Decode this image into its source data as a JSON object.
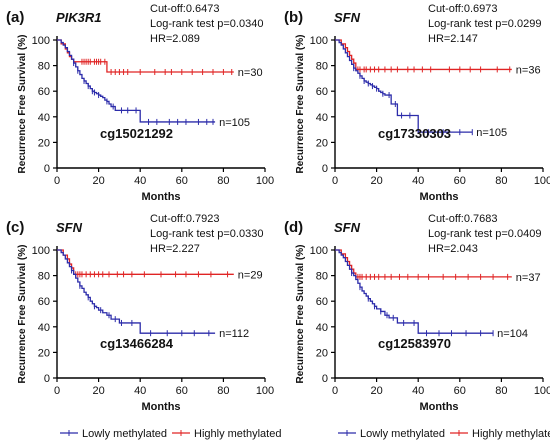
{
  "colors": {
    "low": "#2c2caa",
    "high": "#e02424",
    "axis": "#000000"
  },
  "chart_data": [
    {
      "type": "line",
      "panel": "(a)",
      "gene": "PIK3R1",
      "probe": "cg15021292",
      "stats": [
        "Cut-off:0.6473",
        "Log-rank test p=0.0340",
        "HR=2.089"
      ],
      "xlabel": "Months",
      "ylabel": "Recurrence Free Survival (%)",
      "xlim": [
        0,
        100
      ],
      "ylim": [
        0,
        100
      ],
      "xticks": [
        0,
        20,
        40,
        60,
        80,
        100
      ],
      "yticks": [
        0,
        20,
        40,
        60,
        80,
        100
      ],
      "series": [
        {
          "name": "Highly methylated",
          "color_key": "high",
          "n_label": "n=30",
          "x": [
            0,
            2,
            4,
            5,
            6,
            7,
            8,
            9,
            11,
            24,
            85
          ],
          "y": [
            100,
            97,
            93,
            90,
            87,
            85,
            83,
            83,
            83,
            75,
            75
          ],
          "censor_x": [
            12,
            13,
            14,
            15,
            16,
            18,
            19,
            20,
            21,
            23,
            26,
            28,
            30,
            32,
            34,
            40,
            47,
            52,
            55,
            60,
            65,
            70,
            75,
            80,
            84
          ]
        },
        {
          "name": "Lowly methylated",
          "color_key": "low",
          "n_label": "n=105",
          "x": [
            0,
            2,
            3,
            4,
            5,
            6,
            7,
            8,
            9,
            10,
            11,
            12,
            13,
            14,
            15,
            16,
            17,
            18,
            19,
            20,
            21,
            22,
            23,
            24,
            25,
            26,
            28,
            30,
            40,
            76
          ],
          "y": [
            100,
            98,
            96,
            94,
            91,
            88,
            85,
            82,
            79,
            76,
            73,
            70,
            68,
            66,
            64,
            62,
            60,
            59,
            58,
            57,
            56,
            55,
            53,
            52,
            50,
            48,
            45,
            45,
            36,
            36
          ],
          "censor_x": [
            8,
            10,
            13,
            15,
            17,
            18,
            20,
            24,
            27,
            31,
            34,
            38,
            44,
            48,
            54,
            58,
            62,
            68,
            72,
            75
          ]
        }
      ]
    },
    {
      "type": "line",
      "panel": "(b)",
      "gene": "SFN",
      "probe": "cg17330303",
      "stats": [
        "Cut-off:0.6973",
        "Log-rank test p=0.0299",
        "HR=2.147"
      ],
      "xlabel": "Months",
      "ylabel": "Recurrence Free Survival (%)",
      "xlim": [
        0,
        100
      ],
      "ylim": [
        0,
        100
      ],
      "xticks": [
        0,
        20,
        40,
        60,
        80,
        100
      ],
      "yticks": [
        0,
        20,
        40,
        60,
        80,
        100
      ],
      "series": [
        {
          "name": "Highly methylated",
          "color_key": "high",
          "n_label": "n=36",
          "x": [
            0,
            3,
            5,
            6,
            7,
            8,
            9,
            10,
            85
          ],
          "y": [
            100,
            97,
            94,
            91,
            88,
            85,
            82,
            77,
            77
          ],
          "censor_x": [
            11,
            12,
            14,
            15,
            17,
            19,
            21,
            24,
            27,
            30,
            35,
            38,
            42,
            46,
            55,
            60,
            65,
            70,
            78,
            84
          ]
        },
        {
          "name": "Lowly methylated",
          "color_key": "low",
          "n_label": "n=105",
          "x": [
            0,
            2,
            3,
            4,
            5,
            6,
            7,
            8,
            9,
            10,
            11,
            12,
            13,
            14,
            15,
            16,
            17,
            18,
            19,
            20,
            21,
            22,
            23,
            24,
            27,
            30,
            40,
            66
          ],
          "y": [
            100,
            98,
            96,
            93,
            90,
            87,
            84,
            81,
            78,
            76,
            74,
            72,
            70,
            68,
            67,
            66,
            65,
            64,
            63,
            62,
            60,
            59,
            58,
            57,
            50,
            41,
            28,
            28
          ],
          "censor_x": [
            9,
            12,
            14,
            16,
            18,
            20,
            23,
            26,
            29,
            32,
            36,
            45,
            52,
            60,
            66
          ]
        }
      ]
    },
    {
      "type": "line",
      "panel": "(c)",
      "gene": "SFN",
      "probe": "cg13466284",
      "stats": [
        "Cut-off:0.7923",
        "Log-rank test p=0.0330",
        "HR=2.227"
      ],
      "xlabel": "Months",
      "ylabel": "Recurrence Free Survival (%)",
      "xlim": [
        0,
        100
      ],
      "ylim": [
        0,
        100
      ],
      "xticks": [
        0,
        20,
        40,
        60,
        80,
        100
      ],
      "yticks": [
        0,
        20,
        40,
        60,
        80,
        100
      ],
      "series": [
        {
          "name": "Highly methylated",
          "color_key": "high",
          "n_label": "n=29",
          "x": [
            0,
            3,
            5,
            6,
            7,
            8,
            85
          ],
          "y": [
            100,
            96,
            93,
            89,
            86,
            81,
            81
          ],
          "censor_x": [
            9,
            10,
            11,
            12,
            14,
            16,
            18,
            20,
            22,
            25,
            29,
            32,
            36,
            42,
            50,
            57,
            62,
            68,
            74,
            82
          ]
        },
        {
          "name": "Lowly methylated",
          "color_key": "low",
          "n_label": "n=112",
          "x": [
            0,
            2,
            3,
            4,
            5,
            6,
            7,
            8,
            9,
            10,
            11,
            12,
            13,
            14,
            15,
            16,
            17,
            18,
            19,
            20,
            22,
            24,
            26,
            30,
            40,
            76
          ],
          "y": [
            100,
            98,
            96,
            93,
            90,
            87,
            84,
            81,
            78,
            75,
            72,
            70,
            67,
            65,
            63,
            60,
            58,
            56,
            55,
            53,
            51,
            49,
            46,
            43,
            35,
            35
          ],
          "censor_x": [
            7,
            11,
            15,
            18,
            21,
            25,
            28,
            31,
            36,
            45,
            53,
            60,
            66,
            73
          ]
        }
      ]
    },
    {
      "type": "line",
      "panel": "(d)",
      "gene": "SFN",
      "probe": "cg12583970",
      "stats": [
        "Cut-off:0.7683",
        "Log-rank test p=0.0409",
        "HR=2.043"
      ],
      "xlabel": "Months",
      "ylabel": "Recurrence Free Survival (%)",
      "xlim": [
        0,
        100
      ],
      "ylim": [
        0,
        100
      ],
      "xticks": [
        0,
        20,
        40,
        60,
        80,
        100
      ],
      "yticks": [
        0,
        20,
        40,
        60,
        80,
        100
      ],
      "series": [
        {
          "name": "Highly methylated",
          "color_key": "high",
          "n_label": "n=37",
          "x": [
            0,
            3,
            5,
            6,
            7,
            8,
            9,
            10,
            85
          ],
          "y": [
            100,
            97,
            94,
            91,
            88,
            85,
            82,
            79,
            79
          ],
          "censor_x": [
            11,
            12,
            13,
            15,
            17,
            19,
            21,
            24,
            27,
            31,
            35,
            40,
            45,
            52,
            58,
            64,
            70,
            76,
            83
          ]
        },
        {
          "name": "Lowly methylated",
          "color_key": "low",
          "n_label": "n=104",
          "x": [
            0,
            2,
            3,
            4,
            5,
            6,
            7,
            8,
            9,
            10,
            11,
            12,
            13,
            14,
            15,
            16,
            17,
            18,
            19,
            20,
            22,
            24,
            26,
            30,
            40,
            76
          ],
          "y": [
            100,
            98,
            96,
            94,
            91,
            88,
            85,
            82,
            80,
            77,
            74,
            71,
            68,
            66,
            64,
            62,
            60,
            58,
            56,
            54,
            52,
            49,
            47,
            43,
            35,
            35
          ],
          "censor_x": [
            8,
            12,
            16,
            19,
            22,
            25,
            28,
            33,
            38,
            44,
            50,
            56,
            63,
            70,
            76
          ]
        }
      ]
    }
  ],
  "legend": {
    "low_label": "Lowly methylated",
    "high_label": "Highly methylated"
  }
}
